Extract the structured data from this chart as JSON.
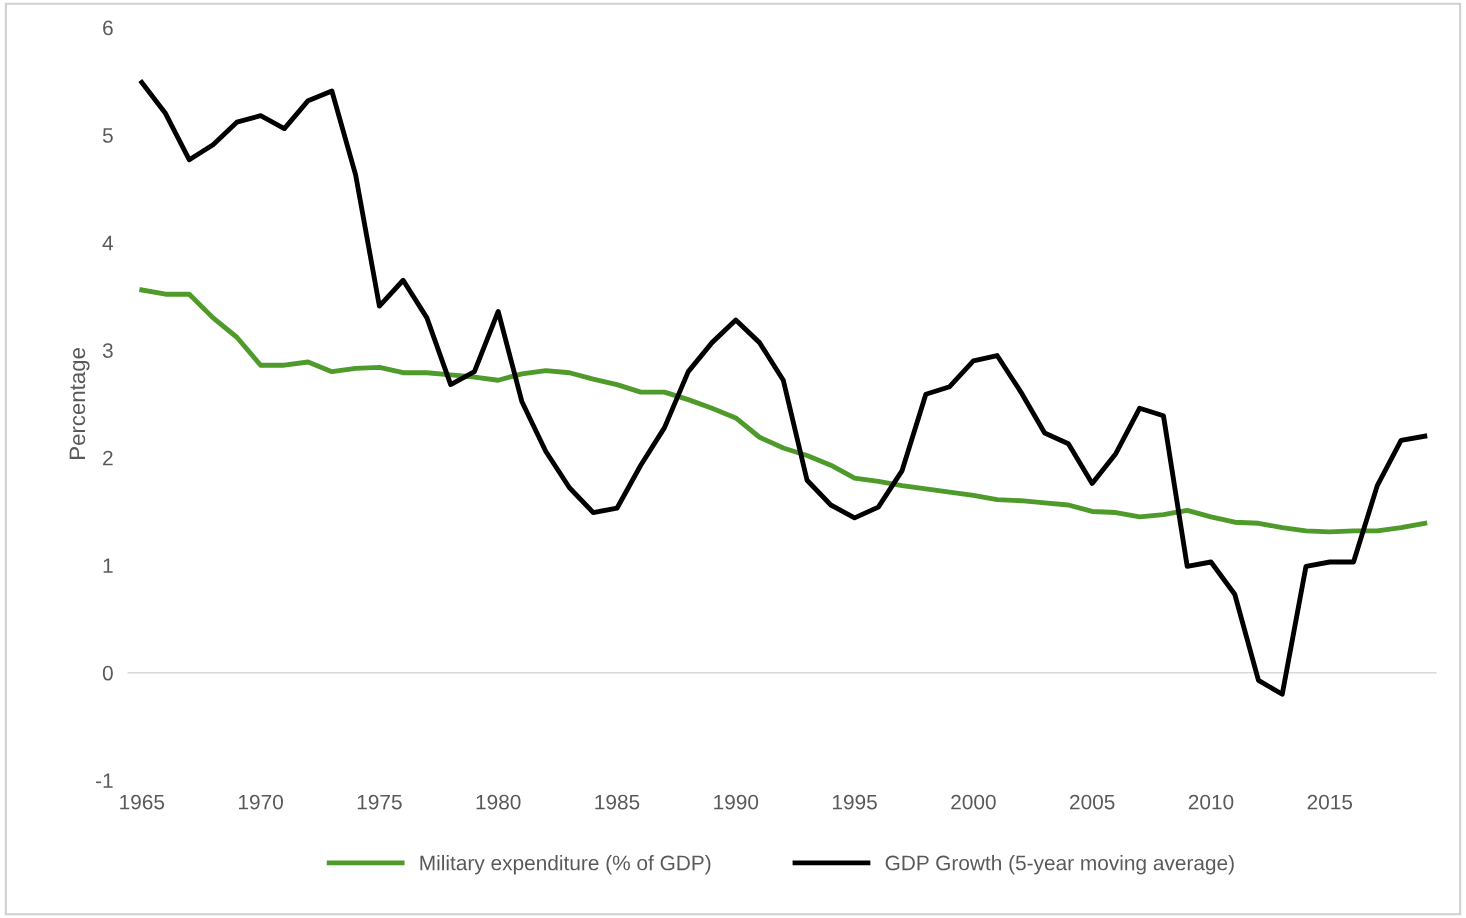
{
  "chart_data": {
    "type": "line",
    "ylabel": "Percentage",
    "x": [
      1965,
      1966,
      1967,
      1968,
      1969,
      1970,
      1971,
      1972,
      1973,
      1974,
      1975,
      1976,
      1977,
      1978,
      1979,
      1980,
      1981,
      1982,
      1983,
      1984,
      1985,
      1986,
      1987,
      1988,
      1989,
      1990,
      1991,
      1992,
      1993,
      1994,
      1995,
      1996,
      1997,
      1998,
      1999,
      2000,
      2001,
      2002,
      2003,
      2004,
      2005,
      2006,
      2007,
      2008,
      2009,
      2010,
      2011,
      2012,
      2013,
      2014,
      2015,
      2016,
      2017,
      2018,
      2019
    ],
    "series": [
      {
        "name": "Military expenditure (% of GDP)",
        "color": "#4e9a2a",
        "values": [
          3.56,
          3.52,
          3.52,
          3.3,
          3.12,
          2.86,
          2.86,
          2.89,
          2.8,
          2.83,
          2.84,
          2.79,
          2.79,
          2.77,
          2.75,
          2.72,
          2.78,
          2.81,
          2.79,
          2.73,
          2.68,
          2.61,
          2.61,
          2.54,
          2.46,
          2.37,
          2.19,
          2.09,
          2.02,
          1.93,
          1.81,
          1.78,
          1.74,
          1.71,
          1.68,
          1.65,
          1.61,
          1.6,
          1.58,
          1.56,
          1.5,
          1.49,
          1.45,
          1.47,
          1.51,
          1.45,
          1.4,
          1.39,
          1.35,
          1.32,
          1.31,
          1.32,
          1.32,
          1.35,
          1.39
        ]
      },
      {
        "name": "GDP Growth (5-year moving average)",
        "color": "#000000",
        "values": [
          5.49,
          5.2,
          4.77,
          4.91,
          5.12,
          5.18,
          5.06,
          5.32,
          5.41,
          4.63,
          3.41,
          3.65,
          3.3,
          2.68,
          2.8,
          3.36,
          2.52,
          2.06,
          1.72,
          1.49,
          1.53,
          1.93,
          2.28,
          2.8,
          3.07,
          3.28,
          3.07,
          2.72,
          1.79,
          1.56,
          1.44,
          1.54,
          1.88,
          2.59,
          2.66,
          2.9,
          2.95,
          2.61,
          2.23,
          2.13,
          1.76,
          2.04,
          2.46,
          2.39,
          0.99,
          1.03,
          0.73,
          -0.07,
          -0.2,
          0.99,
          1.03,
          1.03,
          1.74,
          2.16,
          2.2
        ]
      }
    ],
    "xlim": [
      1964.4,
      2019.5
    ],
    "xticks": [
      1965,
      1970,
      1975,
      1980,
      1985,
      1990,
      1995,
      2000,
      2005,
      2010,
      2015
    ],
    "ylim": [
      -1,
      6
    ],
    "yticks": [
      -1,
      0,
      1,
      2,
      3,
      4,
      5,
      6
    ],
    "ref_lines": [
      {
        "axis": "y",
        "value": 0,
        "color": "#d9d9d9"
      }
    ],
    "grid": false,
    "legend": "bottom",
    "marker": "none",
    "line_style": "solid"
  }
}
